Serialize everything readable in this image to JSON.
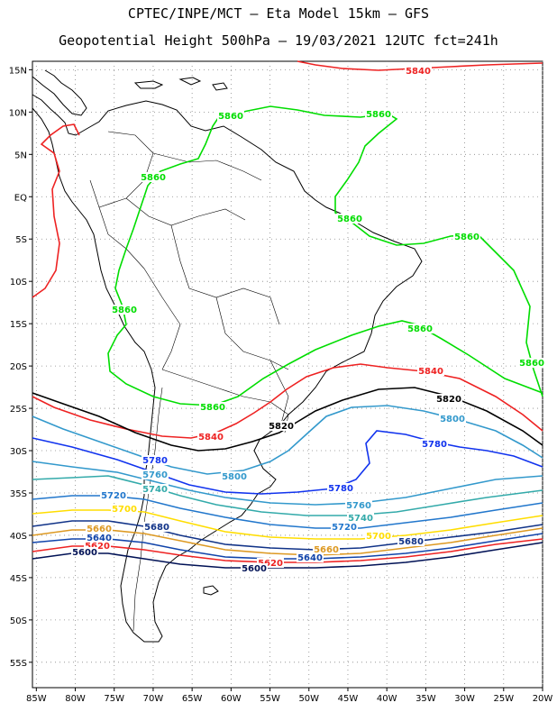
{
  "header": {
    "line1": "CPTEC/INPE/MCT –  Eta Model 15km – GFS",
    "line2": "Geopotential Height 500hPa – 19/03/2021 12UTC fct=241h"
  },
  "axes": {
    "lat_labels": [
      "15N",
      "10N",
      "5N",
      "EQ",
      "5S",
      "10S",
      "15S",
      "20S",
      "25S",
      "30S",
      "35S",
      "40S",
      "45S",
      "50S",
      "55S"
    ],
    "lon_labels": [
      "85W",
      "80W",
      "75W",
      "70W",
      "65W",
      "60W",
      "55W",
      "50W",
      "45W",
      "40W",
      "35W",
      "30W",
      "25W",
      "20W"
    ],
    "lat_range": [
      16,
      -58
    ],
    "lon_range": [
      -85.5,
      -20
    ],
    "grid": "dotted"
  },
  "contours": [
    {
      "value": "5860",
      "color": "#00dd00"
    },
    {
      "value": "5840",
      "color": "#ee2222"
    },
    {
      "value": "5820",
      "color": "#000000"
    },
    {
      "value": "5800",
      "color": "#3399cc"
    },
    {
      "value": "5780",
      "color": "#1133ee"
    },
    {
      "value": "5760",
      "color": "#3399cc"
    },
    {
      "value": "5740",
      "color": "#33aaaa"
    },
    {
      "value": "5720",
      "color": "#2277cc"
    },
    {
      "value": "5700",
      "color": "#ffdd00"
    },
    {
      "value": "5680",
      "color": "#113388"
    },
    {
      "value": "5660",
      "color": "#dd9922"
    },
    {
      "value": "5640",
      "color": "#1144aa"
    },
    {
      "value": "5620",
      "color": "#ee2222"
    },
    {
      "value": "5600",
      "color": "#001155"
    }
  ],
  "contour_labels": {
    "l5860a": "5860",
    "l5860b": "5860",
    "l5860c": "5860",
    "l5860d": "5860",
    "l5860e": "5860",
    "l5860f": "5860",
    "l5860g": "5860",
    "l5860h": "5860",
    "l5860i": "5860",
    "l5840a": "5840",
    "l5840b": "5840",
    "l5840c": "5840",
    "l5820a": "5820",
    "l5820b": "5820",
    "l5800a": "5800",
    "l5800b": "5800",
    "l5780a": "5780",
    "l5780b": "5780",
    "l5780c": "5780",
    "l5760a": "5760",
    "l5760b": "5760",
    "l5740a": "5740",
    "l5740b": "5740",
    "l5720a": "5720",
    "l5720b": "5720",
    "l5700a": "5700",
    "l5700b": "5700",
    "l5680a": "5680",
    "l5680b": "5680",
    "l5660a": "5660",
    "l5660b": "5660",
    "l5640a": "5640",
    "l5640b": "5640",
    "l5620a": "5620",
    "l5620b": "5620",
    "l5600a": "5600",
    "l5600b": "5600"
  }
}
